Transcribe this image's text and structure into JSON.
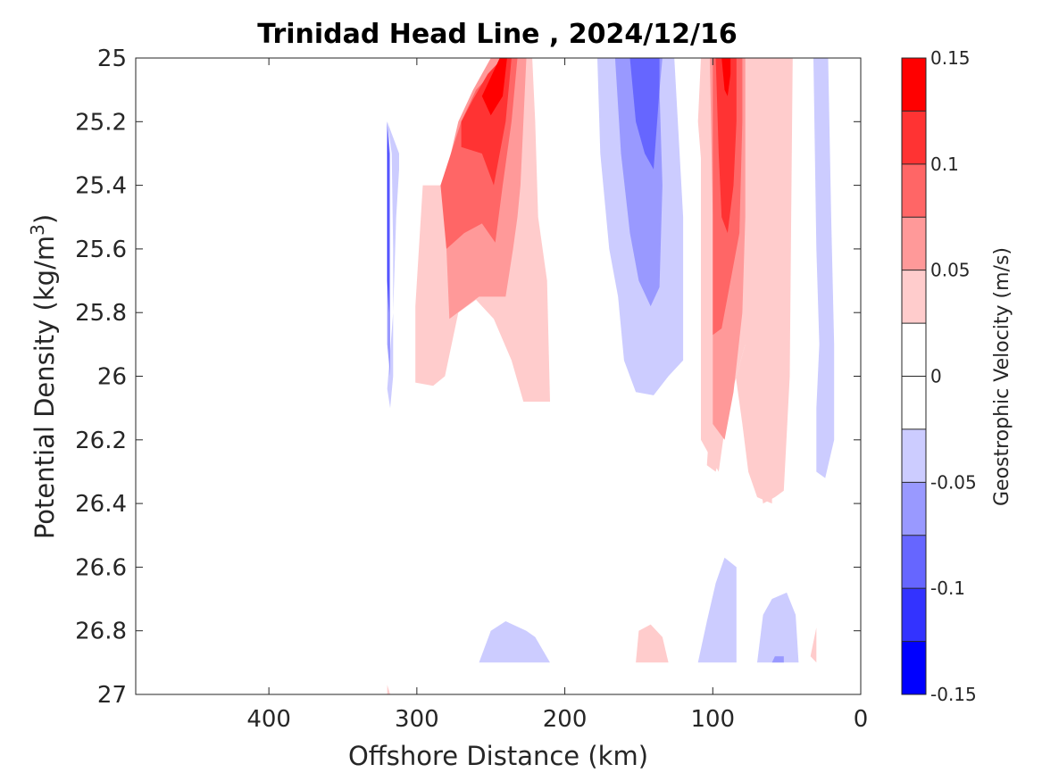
{
  "chart_data": {
    "type": "contour",
    "title": "Trinidad Head Line , 2024/12/16",
    "xlabel": "Offshore Distance (km)",
    "ylabel_main": "Potential Density (kg/m",
    "ylabel_sup": "3",
    "ylabel_end": ")",
    "xlim": [
      490,
      0
    ],
    "x_reversed": true,
    "x_ticks": [
      "400",
      "300",
      "200",
      "100",
      "0"
    ],
    "x_tick_values": [
      400,
      300,
      200,
      100,
      0
    ],
    "ylim": [
      25,
      27
    ],
    "y_reversed": true,
    "y_ticks": [
      "25",
      "25.2",
      "25.4",
      "25.6",
      "25.8",
      "26",
      "26.2",
      "26.4",
      "26.6",
      "26.8",
      "27"
    ],
    "y_tick_values": [
      25,
      25.2,
      25.4,
      25.6,
      25.8,
      26,
      26.2,
      26.4,
      26.6,
      26.8,
      27
    ],
    "colorbar": {
      "label": "Geostrophic Velocity (m/s)",
      "ticks": [
        "0.15",
        "0.1",
        "0.05",
        "0",
        "-0.05",
        "-0.1",
        "-0.15"
      ],
      "tick_values": [
        0.15,
        0.1,
        0.05,
        0,
        -0.05,
        -0.1,
        -0.15
      ],
      "levels": [
        -0.15,
        -0.125,
        -0.1,
        -0.075,
        -0.05,
        -0.025,
        0,
        0.025,
        0.05,
        0.075,
        0.1,
        0.125,
        0.15
      ],
      "colors": [
        "#0000ff",
        "#3333ff",
        "#6666ff",
        "#9999ff",
        "#ccccff",
        "#ffffff",
        "#ffffff",
        "#ffcccc",
        "#ff9999",
        "#ff6666",
        "#ff3333",
        "#ff0000"
      ]
    },
    "regions": [
      {
        "level": 0.025,
        "color": "#ffcccc",
        "points": [
          [
            296,
            25.4
          ],
          [
            262,
            25.4
          ],
          [
            250,
            25.18
          ],
          [
            240,
            25
          ],
          [
            222,
            25
          ],
          [
            220,
            25.2
          ],
          [
            218,
            25.5
          ],
          [
            212,
            25.7
          ],
          [
            210,
            26.08
          ],
          [
            228,
            26.08
          ],
          [
            236,
            25.95
          ],
          [
            248,
            25.82
          ],
          [
            260,
            25.76
          ],
          [
            272,
            25.8
          ],
          [
            281,
            26.0
          ],
          [
            289,
            26.03
          ],
          [
            301,
            26.02
          ],
          [
            301,
            25.78
          ]
        ]
      },
      {
        "level": 0.05,
        "color": "#ff9999",
        "points": [
          [
            282,
            25.4
          ],
          [
            272,
            25.2
          ],
          [
            262,
            25.1
          ],
          [
            250,
            25
          ],
          [
            226,
            25
          ],
          [
            228,
            25.2
          ],
          [
            230,
            25.4
          ],
          [
            232,
            25.5
          ],
          [
            235,
            25.6
          ],
          [
            240,
            25.75
          ],
          [
            258,
            25.75
          ],
          [
            278,
            25.82
          ],
          [
            280,
            25.6
          ]
        ]
      },
      {
        "level": 0.075,
        "color": "#ff6666",
        "points": [
          [
            284,
            25.4
          ],
          [
            270,
            25.2
          ],
          [
            260,
            25.1
          ],
          [
            240,
            25
          ],
          [
            232,
            25
          ],
          [
            236,
            25.2
          ],
          [
            242,
            25.4
          ],
          [
            247,
            25.58
          ],
          [
            256,
            25.52
          ],
          [
            268,
            25.55
          ],
          [
            280,
            25.6
          ]
        ]
      },
      {
        "level": 0.1,
        "color": "#ff3333",
        "points": [
          [
            270,
            25.2
          ],
          [
            262,
            25.13
          ],
          [
            252,
            25.05
          ],
          [
            242,
            25
          ],
          [
            236,
            25
          ],
          [
            240,
            25.2
          ],
          [
            248,
            25.4
          ],
          [
            256,
            25.3
          ],
          [
            270,
            25.28
          ]
        ]
      },
      {
        "level": 0.125,
        "color": "#ff0000",
        "points": [
          [
            256,
            25.12
          ],
          [
            244,
            25
          ],
          [
            239,
            25
          ],
          [
            242,
            25.12
          ],
          [
            250,
            25.18
          ]
        ]
      },
      {
        "level": 0.025,
        "color": "#ffcccc",
        "points": [
          [
            108,
            25
          ],
          [
            100,
            25.5
          ],
          [
            100,
            26.0
          ],
          [
            104,
            26.28
          ],
          [
            98,
            26.3
          ],
          [
            96,
            26.26
          ],
          [
            90,
            26.1
          ],
          [
            78,
            25.9
          ],
          [
            70,
            25.7
          ],
          [
            60,
            26.0
          ],
          [
            60,
            26.4
          ],
          [
            70,
            26.38
          ],
          [
            76,
            26.3
          ],
          [
            80,
            26.15
          ],
          [
            86,
            25.95
          ],
          [
            94,
            25.7
          ],
          [
            104,
            25.55
          ],
          [
            110,
            25.2
          ]
        ]
      },
      {
        "level": 0.025,
        "color": "#ffcccc",
        "points": [
          [
            108,
            25
          ],
          [
            108,
            26.2
          ],
          [
            96,
            26.3
          ],
          [
            90,
            26.1
          ],
          [
            78,
            25.9
          ],
          [
            72,
            26.2
          ],
          [
            66,
            26.4
          ],
          [
            58,
            26.38
          ],
          [
            52,
            26.36
          ],
          [
            48,
            26.0
          ],
          [
            47,
            25.5
          ],
          [
            46,
            25
          ],
          [
            80,
            25
          ]
        ]
      },
      {
        "level": 0.05,
        "color": "#ff9999",
        "points": [
          [
            102,
            25
          ],
          [
            100,
            25.5
          ],
          [
            100,
            26.0
          ],
          [
            100,
            26.15
          ],
          [
            92,
            26.2
          ],
          [
            86,
            26.05
          ],
          [
            80,
            25.8
          ],
          [
            78,
            25.5
          ],
          [
            78,
            25
          ]
        ]
      },
      {
        "level": 0.075,
        "color": "#ff6666",
        "points": [
          [
            100,
            25
          ],
          [
            100,
            25.5
          ],
          [
            100,
            25.87
          ],
          [
            94,
            25.85
          ],
          [
            88,
            25.7
          ],
          [
            82,
            25.55
          ],
          [
            80,
            25.2
          ],
          [
            80,
            25
          ]
        ]
      },
      {
        "level": 0.1,
        "color": "#ff3333",
        "points": [
          [
            98,
            25
          ],
          [
            96,
            25.3
          ],
          [
            94,
            25.5
          ],
          [
            90,
            25.55
          ],
          [
            86,
            25.4
          ],
          [
            84,
            25.2
          ],
          [
            84,
            25
          ]
        ]
      },
      {
        "level": 0.125,
        "color": "#ff0000",
        "points": [
          [
            94,
            25
          ],
          [
            92,
            25.1
          ],
          [
            90,
            25.12
          ],
          [
            88,
            25.05
          ],
          [
            88,
            25
          ]
        ]
      },
      {
        "level": -0.025,
        "color": "#ccccff",
        "points": [
          [
            178,
            25
          ],
          [
            176,
            25.3
          ],
          [
            170,
            25.6
          ],
          [
            164,
            25.75
          ],
          [
            160,
            25.95
          ],
          [
            152,
            26.05
          ],
          [
            140,
            26.06
          ],
          [
            130,
            26.0
          ],
          [
            120,
            25.95
          ],
          [
            120,
            25.5
          ],
          [
            126,
            25
          ],
          [
            152,
            25
          ]
        ]
      },
      {
        "level": -0.05,
        "color": "#9999ff",
        "points": [
          [
            166,
            25
          ],
          [
            162,
            25.3
          ],
          [
            156,
            25.55
          ],
          [
            150,
            25.7
          ],
          [
            142,
            25.78
          ],
          [
            136,
            25.72
          ],
          [
            134,
            25.4
          ],
          [
            136,
            25.1
          ],
          [
            134,
            25
          ]
        ]
      },
      {
        "level": -0.075,
        "color": "#6666ff",
        "points": [
          [
            156,
            25
          ],
          [
            152,
            25.2
          ],
          [
            146,
            25.3
          ],
          [
            140,
            25.35
          ],
          [
            136,
            25.1
          ],
          [
            136,
            25
          ]
        ]
      },
      {
        "level": -0.025,
        "color": "#ccccff",
        "points": [
          [
            32,
            25
          ],
          [
            30,
            25.6
          ],
          [
            28,
            25.9
          ],
          [
            30,
            26.1
          ],
          [
            30,
            26.3
          ],
          [
            24,
            26.32
          ],
          [
            18,
            26.2
          ],
          [
            18,
            25.9
          ],
          [
            20,
            25.5
          ],
          [
            22,
            25
          ]
        ]
      },
      {
        "level": -0.025,
        "color": "#ccccff",
        "points": [
          [
            320,
            25.2
          ],
          [
            317,
            25.3
          ],
          [
            316,
            25.6
          ],
          [
            316,
            26.0
          ],
          [
            318,
            26.1
          ],
          [
            320,
            26.04
          ],
          [
            316,
            25.8
          ],
          [
            314,
            25.5
          ],
          [
            312,
            25.35
          ],
          [
            312,
            25.3
          ]
        ]
      },
      {
        "level": -0.05,
        "color": "#9999ff",
        "points": [
          [
            320,
            25.2
          ],
          [
            318,
            25.3
          ],
          [
            318,
            25.6
          ],
          [
            318,
            26.0
          ],
          [
            320,
            25.9
          ]
        ]
      },
      {
        "level": -0.1,
        "color": "#3333ff",
        "points": [
          [
            320,
            25.2
          ],
          [
            319,
            25.3
          ],
          [
            319,
            25.5
          ],
          [
            319,
            25.8
          ],
          [
            320,
            25.7
          ]
        ]
      },
      {
        "level": -0.025,
        "color": "#ccccff",
        "points": [
          [
            258,
            26.9
          ],
          [
            250,
            26.8
          ],
          [
            240,
            26.77
          ],
          [
            226,
            26.8
          ],
          [
            220,
            26.82
          ],
          [
            210,
            26.9
          ]
        ]
      },
      {
        "level": 0.025,
        "color": "#ffcccc",
        "points": [
          [
            152,
            26.9
          ],
          [
            150,
            26.8
          ],
          [
            142,
            26.78
          ],
          [
            134,
            26.82
          ],
          [
            130,
            26.9
          ]
        ]
      },
      {
        "level": -0.025,
        "color": "#ccccff",
        "points": [
          [
            110,
            26.9
          ],
          [
            104,
            26.77
          ],
          [
            98,
            26.65
          ],
          [
            92,
            26.57
          ],
          [
            84,
            26.6
          ],
          [
            84,
            26.9
          ]
        ]
      },
      {
        "level": -0.025,
        "color": "#ccccff",
        "points": [
          [
            70,
            26.9
          ],
          [
            66,
            26.75
          ],
          [
            60,
            26.7
          ],
          [
            50,
            26.68
          ],
          [
            44,
            26.75
          ],
          [
            42,
            26.9
          ]
        ]
      },
      {
        "level": -0.05,
        "color": "#9999ff",
        "points": [
          [
            60,
            26.9
          ],
          [
            58,
            26.88
          ],
          [
            52,
            26.88
          ],
          [
            52,
            26.9
          ]
        ]
      },
      {
        "level": 0.025,
        "color": "#ffcccc",
        "points": [
          [
            34,
            26.88
          ],
          [
            30,
            26.79
          ],
          [
            30,
            26.9
          ]
        ]
      },
      {
        "level": 0.025,
        "color": "#ffcccc",
        "points": [
          [
            320,
            26.97
          ],
          [
            320,
            27.0
          ],
          [
            318,
            27.0
          ]
        ]
      }
    ]
  }
}
